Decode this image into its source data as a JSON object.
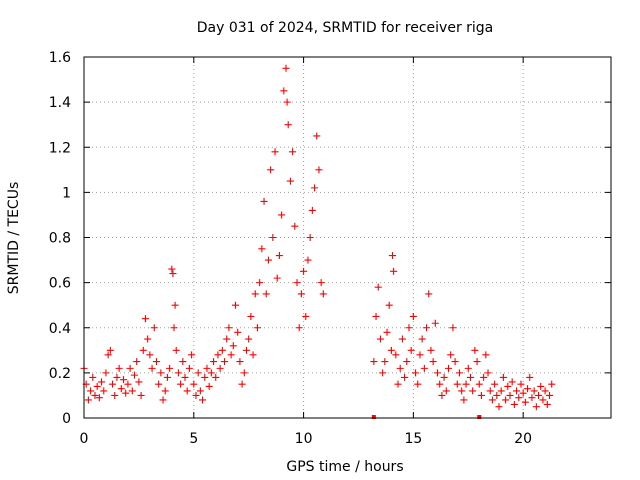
{
  "chart_data": {
    "type": "scatter",
    "title": "Day 031 of 2024, SRMTID for receiver riga",
    "xlabel": "GPS time / hours",
    "ylabel": "SRMTID / TECUs",
    "xlim": [
      0,
      24
    ],
    "ylim": [
      0,
      1.6
    ],
    "xticks": [
      0,
      5,
      10,
      15,
      20
    ],
    "xtick_labels": [
      "0",
      "5",
      "10",
      "15",
      "20"
    ],
    "yticks": [
      0,
      0.2,
      0.4,
      0.6,
      0.8,
      1.0,
      1.2,
      1.4,
      1.6
    ],
    "ytick_labels": [
      "0",
      "0.2",
      "0.4",
      "0.6",
      "0.8",
      "1",
      "1.2",
      "1.4",
      "1.6"
    ],
    "grid": true,
    "marker": "plus",
    "series_color": "#ff0000",
    "series": [
      {
        "name": "SRMTID",
        "points": [
          [
            0.0,
            0.22
          ],
          [
            0.1,
            0.15
          ],
          [
            0.2,
            0.08
          ],
          [
            0.3,
            0.12
          ],
          [
            0.4,
            0.18
          ],
          [
            0.5,
            0.1
          ],
          [
            0.6,
            0.14
          ],
          [
            0.7,
            0.09
          ],
          [
            0.8,
            0.16
          ],
          [
            0.9,
            0.12
          ],
          [
            1.0,
            0.2
          ],
          [
            1.1,
            0.28
          ],
          [
            1.2,
            0.3
          ],
          [
            1.3,
            0.15
          ],
          [
            1.4,
            0.1
          ],
          [
            1.5,
            0.18
          ],
          [
            1.6,
            0.22
          ],
          [
            1.7,
            0.13
          ],
          [
            1.8,
            0.17
          ],
          [
            1.9,
            0.11
          ],
          [
            2.0,
            0.15
          ],
          [
            2.1,
            0.22
          ],
          [
            2.2,
            0.12
          ],
          [
            2.3,
            0.19
          ],
          [
            2.4,
            0.25
          ],
          [
            2.5,
            0.16
          ],
          [
            2.6,
            0.1
          ],
          [
            2.7,
            0.3
          ],
          [
            2.8,
            0.44
          ],
          [
            2.9,
            0.35
          ],
          [
            3.0,
            0.28
          ],
          [
            3.1,
            0.22
          ],
          [
            3.2,
            0.4
          ],
          [
            3.3,
            0.25
          ],
          [
            3.4,
            0.15
          ],
          [
            3.5,
            0.2
          ],
          [
            3.6,
            0.08
          ],
          [
            3.7,
            0.12
          ],
          [
            3.8,
            0.18
          ],
          [
            3.9,
            0.22
          ],
          [
            4.0,
            0.66
          ],
          [
            4.05,
            0.64
          ],
          [
            4.1,
            0.4
          ],
          [
            4.15,
            0.5
          ],
          [
            4.2,
            0.3
          ],
          [
            4.3,
            0.2
          ],
          [
            4.4,
            0.15
          ],
          [
            4.5,
            0.25
          ],
          [
            4.6,
            0.18
          ],
          [
            4.7,
            0.12
          ],
          [
            4.8,
            0.22
          ],
          [
            4.9,
            0.28
          ],
          [
            5.0,
            0.15
          ],
          [
            5.1,
            0.1
          ],
          [
            5.2,
            0.2
          ],
          [
            5.3,
            0.12
          ],
          [
            5.4,
            0.08
          ],
          [
            5.5,
            0.18
          ],
          [
            5.6,
            0.22
          ],
          [
            5.7,
            0.14
          ],
          [
            5.8,
            0.2
          ],
          [
            5.9,
            0.25
          ],
          [
            6.0,
            0.18
          ],
          [
            6.1,
            0.28
          ],
          [
            6.2,
            0.22
          ],
          [
            6.3,
            0.3
          ],
          [
            6.4,
            0.25
          ],
          [
            6.5,
            0.35
          ],
          [
            6.6,
            0.4
          ],
          [
            6.7,
            0.28
          ],
          [
            6.8,
            0.32
          ],
          [
            6.9,
            0.5
          ],
          [
            7.0,
            0.38
          ],
          [
            7.1,
            0.25
          ],
          [
            7.2,
            0.15
          ],
          [
            7.3,
            0.2
          ],
          [
            7.4,
            0.3
          ],
          [
            7.5,
            0.35
          ],
          [
            7.6,
            0.45
          ],
          [
            7.7,
            0.28
          ],
          [
            7.8,
            0.55
          ],
          [
            7.9,
            0.4
          ],
          [
            8.0,
            0.6
          ],
          [
            8.1,
            0.75
          ],
          [
            8.2,
            0.96
          ],
          [
            8.3,
            0.55
          ],
          [
            8.4,
            0.7
          ],
          [
            8.5,
            1.1
          ],
          [
            8.6,
            0.8
          ],
          [
            8.7,
            1.18
          ],
          [
            8.8,
            0.62
          ],
          [
            8.9,
            0.72
          ],
          [
            9.0,
            0.9
          ],
          [
            9.1,
            1.45
          ],
          [
            9.2,
            1.55
          ],
          [
            9.25,
            1.4
          ],
          [
            9.3,
            1.3
          ],
          [
            9.4,
            1.05
          ],
          [
            9.5,
            1.18
          ],
          [
            9.6,
            0.85
          ],
          [
            9.7,
            0.6
          ],
          [
            9.8,
            0.4
          ],
          [
            9.9,
            0.55
          ],
          [
            10.0,
            0.65
          ],
          [
            10.1,
            0.45
          ],
          [
            10.2,
            0.7
          ],
          [
            10.3,
            0.8
          ],
          [
            10.4,
            0.92
          ],
          [
            10.5,
            1.02
          ],
          [
            10.6,
            1.25
          ],
          [
            10.7,
            1.1
          ],
          [
            10.8,
            0.6
          ],
          [
            10.9,
            0.55
          ],
          [
            13.2,
            0.25
          ],
          [
            13.3,
            0.45
          ],
          [
            13.4,
            0.58
          ],
          [
            13.5,
            0.35
          ],
          [
            13.6,
            0.2
          ],
          [
            13.7,
            0.25
          ],
          [
            13.8,
            0.38
          ],
          [
            13.9,
            0.5
          ],
          [
            14.0,
            0.3
          ],
          [
            14.05,
            0.72
          ],
          [
            14.1,
            0.65
          ],
          [
            14.2,
            0.28
          ],
          [
            14.3,
            0.15
          ],
          [
            14.4,
            0.22
          ],
          [
            14.5,
            0.35
          ],
          [
            14.6,
            0.18
          ],
          [
            14.7,
            0.25
          ],
          [
            14.8,
            0.4
          ],
          [
            14.9,
            0.3
          ],
          [
            15.0,
            0.45
          ],
          [
            15.1,
            0.2
          ],
          [
            15.2,
            0.15
          ],
          [
            15.3,
            0.28
          ],
          [
            15.4,
            0.35
          ],
          [
            15.5,
            0.22
          ],
          [
            15.6,
            0.4
          ],
          [
            15.7,
            0.55
          ],
          [
            15.8,
            0.3
          ],
          [
            15.9,
            0.25
          ],
          [
            16.0,
            0.42
          ],
          [
            16.1,
            0.2
          ],
          [
            16.2,
            0.15
          ],
          [
            16.3,
            0.1
          ],
          [
            16.4,
            0.18
          ],
          [
            16.5,
            0.12
          ],
          [
            16.6,
            0.22
          ],
          [
            16.7,
            0.28
          ],
          [
            16.8,
            0.4
          ],
          [
            16.9,
            0.25
          ],
          [
            17.0,
            0.15
          ],
          [
            17.1,
            0.2
          ],
          [
            17.2,
            0.12
          ],
          [
            17.3,
            0.08
          ],
          [
            17.4,
            0.15
          ],
          [
            17.5,
            0.22
          ],
          [
            17.6,
            0.18
          ],
          [
            17.7,
            0.12
          ],
          [
            17.8,
            0.3
          ],
          [
            17.9,
            0.25
          ],
          [
            18.0,
            0.15
          ],
          [
            18.1,
            0.1
          ],
          [
            18.2,
            0.18
          ],
          [
            18.3,
            0.28
          ],
          [
            18.4,
            0.2
          ],
          [
            18.5,
            0.12
          ],
          [
            18.6,
            0.08
          ],
          [
            18.7,
            0.15
          ],
          [
            18.8,
            0.1
          ],
          [
            18.9,
            0.05
          ],
          [
            19.0,
            0.12
          ],
          [
            19.1,
            0.18
          ],
          [
            19.2,
            0.08
          ],
          [
            19.3,
            0.14
          ],
          [
            19.4,
            0.1
          ],
          [
            19.5,
            0.16
          ],
          [
            19.6,
            0.06
          ],
          [
            19.7,
            0.12
          ],
          [
            19.8,
            0.09
          ],
          [
            19.9,
            0.15
          ],
          [
            20.0,
            0.11
          ],
          [
            20.1,
            0.07
          ],
          [
            20.2,
            0.13
          ],
          [
            20.3,
            0.18
          ],
          [
            20.4,
            0.09
          ],
          [
            20.5,
            0.12
          ],
          [
            20.6,
            0.05
          ],
          [
            20.7,
            0.1
          ],
          [
            20.8,
            0.14
          ],
          [
            20.9,
            0.08
          ],
          [
            21.0,
            0.12
          ],
          [
            21.1,
            0.06
          ],
          [
            21.2,
            0.1
          ],
          [
            21.3,
            0.15
          ]
        ]
      }
    ],
    "outliers": [
      [
        13.2,
        0.0
      ],
      [
        18.0,
        0.0
      ]
    ]
  }
}
